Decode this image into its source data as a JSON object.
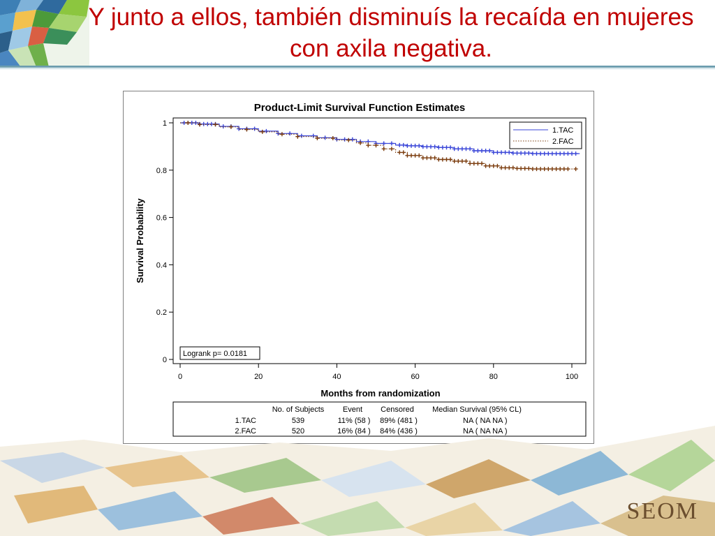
{
  "slide": {
    "title": "Y junto a ellos, también disminuís la recaída en mujeres con axila negativa.",
    "brand": "SEOM",
    "colors": {
      "title": "#c00000",
      "rule": "#6f9fb0"
    }
  },
  "chart_data": {
    "type": "line",
    "step": true,
    "title": "Product-Limit Survival Function Estimates",
    "xlabel": "Months from randomization",
    "ylabel": "Survival Probability",
    "xlim": [
      0,
      102
    ],
    "ylim": [
      0,
      1
    ],
    "xticks": [
      "0",
      "20",
      "40",
      "60",
      "80",
      "100"
    ],
    "yticks": [
      "0",
      "0.2",
      "0.4",
      "0.6",
      "0.8",
      "1"
    ],
    "legend_position": "top-right",
    "annotation": "Logrank p= 0.0181",
    "series": [
      {
        "name": "1.TAC",
        "color": "#3a46d8",
        "style": "solid",
        "x": [
          0,
          5,
          10,
          15,
          20,
          25,
          30,
          35,
          40,
          45,
          50,
          55,
          58,
          62,
          66,
          70,
          75,
          80,
          85,
          90,
          95,
          102
        ],
        "y": [
          1.0,
          0.995,
          0.985,
          0.975,
          0.965,
          0.955,
          0.945,
          0.937,
          0.93,
          0.921,
          0.913,
          0.906,
          0.903,
          0.899,
          0.896,
          0.89,
          0.882,
          0.875,
          0.872,
          0.87,
          0.87,
          0.87
        ],
        "censor_x": [
          1,
          2,
          3,
          4,
          5,
          6,
          7,
          8,
          9,
          11,
          13,
          15,
          17,
          19,
          22,
          25,
          28,
          31,
          34,
          37,
          40,
          42,
          44,
          46,
          48,
          50,
          52,
          54,
          56,
          57,
          58,
          59,
          60,
          61,
          62,
          63,
          64,
          65,
          66,
          67,
          68,
          69,
          70,
          71,
          72,
          73,
          74,
          75,
          76,
          77,
          78,
          79,
          80,
          81,
          82,
          83,
          84,
          85,
          86,
          87,
          88,
          89,
          90,
          91,
          92,
          93,
          94,
          95,
          96,
          97,
          98,
          99,
          100,
          101
        ]
      },
      {
        "name": "2.FAC",
        "color": "#7a3b0c",
        "style": "dotted",
        "x": [
          0,
          5,
          10,
          15,
          20,
          25,
          30,
          35,
          40,
          45,
          48,
          52,
          55,
          58,
          62,
          66,
          70,
          74,
          78,
          82,
          86,
          90,
          95,
          101
        ],
        "y": [
          1.0,
          0.993,
          0.983,
          0.972,
          0.962,
          0.952,
          0.942,
          0.935,
          0.927,
          0.915,
          0.905,
          0.89,
          0.875,
          0.862,
          0.852,
          0.845,
          0.838,
          0.828,
          0.818,
          0.81,
          0.807,
          0.805,
          0.805,
          0.805
        ],
        "censor_x": [
          2,
          5,
          9,
          13,
          17,
          21,
          26,
          30,
          35,
          39,
          43,
          46,
          48,
          50,
          52,
          54,
          56,
          57,
          58,
          59,
          60,
          61,
          62,
          63,
          64,
          65,
          66,
          67,
          68,
          69,
          70,
          71,
          72,
          73,
          74,
          75,
          76,
          77,
          78,
          79,
          80,
          81,
          82,
          83,
          84,
          85,
          86,
          87,
          88,
          89,
          90,
          91,
          92,
          93,
          94,
          95,
          96,
          97,
          98,
          99,
          101
        ]
      }
    ],
    "table": {
      "headers": [
        "",
        "No. of Subjects",
        "Event",
        "Censored",
        "Median Survival (95% CL)"
      ],
      "rows": [
        [
          "1.TAC",
          "539",
          "11% (58 )",
          "89% (481 )",
          "NA ( NA NA )"
        ],
        [
          "2.FAC",
          "520",
          "16% (84 )",
          "84% (436 )",
          "NA ( NA NA )"
        ]
      ]
    }
  }
}
